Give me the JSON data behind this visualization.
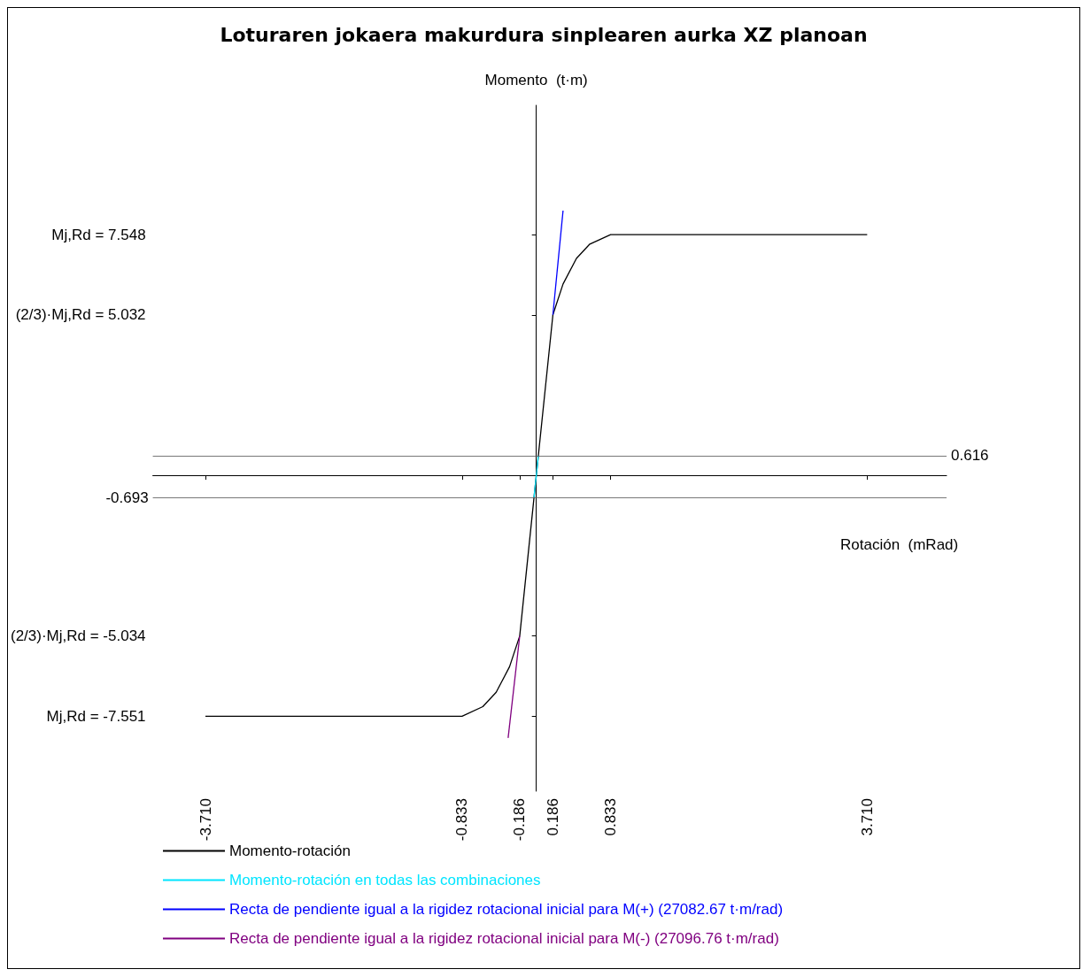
{
  "chart_data": {
    "type": "line",
    "title": "Loturaren jokaera makurdura sinplearen aurka XZ planoan",
    "xlabel": "Rotación  (mRad)",
    "ylabel": "Momento  (t·m)",
    "xlim": [
      -4.3,
      4.6
    ],
    "ylim": [
      -9.9,
      11.6
    ],
    "xticks": [
      {
        "value": -3.71,
        "label": "-3.710"
      },
      -0.833,
      -0.186,
      0.186,
      0.833,
      {
        "value": 3.71,
        "label": "3.710"
      }
    ],
    "yticks": [
      {
        "value": 7.548,
        "label": "Mj,Rd = 7.548"
      },
      {
        "value": 5.032,
        "label": "(2/3)·Mj,Rd = 5.032"
      },
      {
        "value": -5.034,
        "label": "(2/3)·Mj,Rd = -5.034"
      },
      {
        "value": -7.551,
        "label": "Mj,Rd = -7.551"
      }
    ],
    "ref_lines": [
      {
        "axis": "y",
        "value": 0.616,
        "label": "0.616",
        "color": "#555555"
      },
      {
        "axis": "y",
        "value": -0.693,
        "label": "-0.693",
        "color": "#555555"
      }
    ],
    "series": [
      {
        "name": "Momento-rotación",
        "color": "#000000",
        "x": [
          -3.71,
          -0.833,
          -0.6,
          -0.45,
          -0.3,
          -0.186,
          0,
          0.186,
          0.3,
          0.45,
          0.6,
          0.833,
          3.71
        ],
        "values": [
          -7.551,
          -7.551,
          -7.25,
          -6.8,
          -6.0,
          -5.034,
          0,
          5.032,
          6.0,
          6.8,
          7.25,
          7.548,
          7.548
        ]
      },
      {
        "name": "Momento-rotación en todas las combinaciones",
        "color": "#00e5ff",
        "x": [
          -0.026,
          0.023
        ],
        "values": [
          -0.693,
          0.616
        ]
      },
      {
        "name": "Recta de pendiente igual a la rigidez rotacional inicial para M(+) (27082.67 t·m/rad)",
        "color": "#0000ff",
        "x": [
          0.186,
          0.3
        ],
        "values": [
          5.032,
          8.3
        ]
      },
      {
        "name": "Recta de pendiente igual a la rigidez rotacional inicial para M(-) (27096.76 t·m/rad)",
        "color": "#800080",
        "x": [
          -0.186,
          -0.316
        ],
        "values": [
          -5.034,
          -8.23
        ]
      }
    ],
    "legend": "bottom",
    "marker": "none",
    "line_style": "solid",
    "grid": false
  }
}
